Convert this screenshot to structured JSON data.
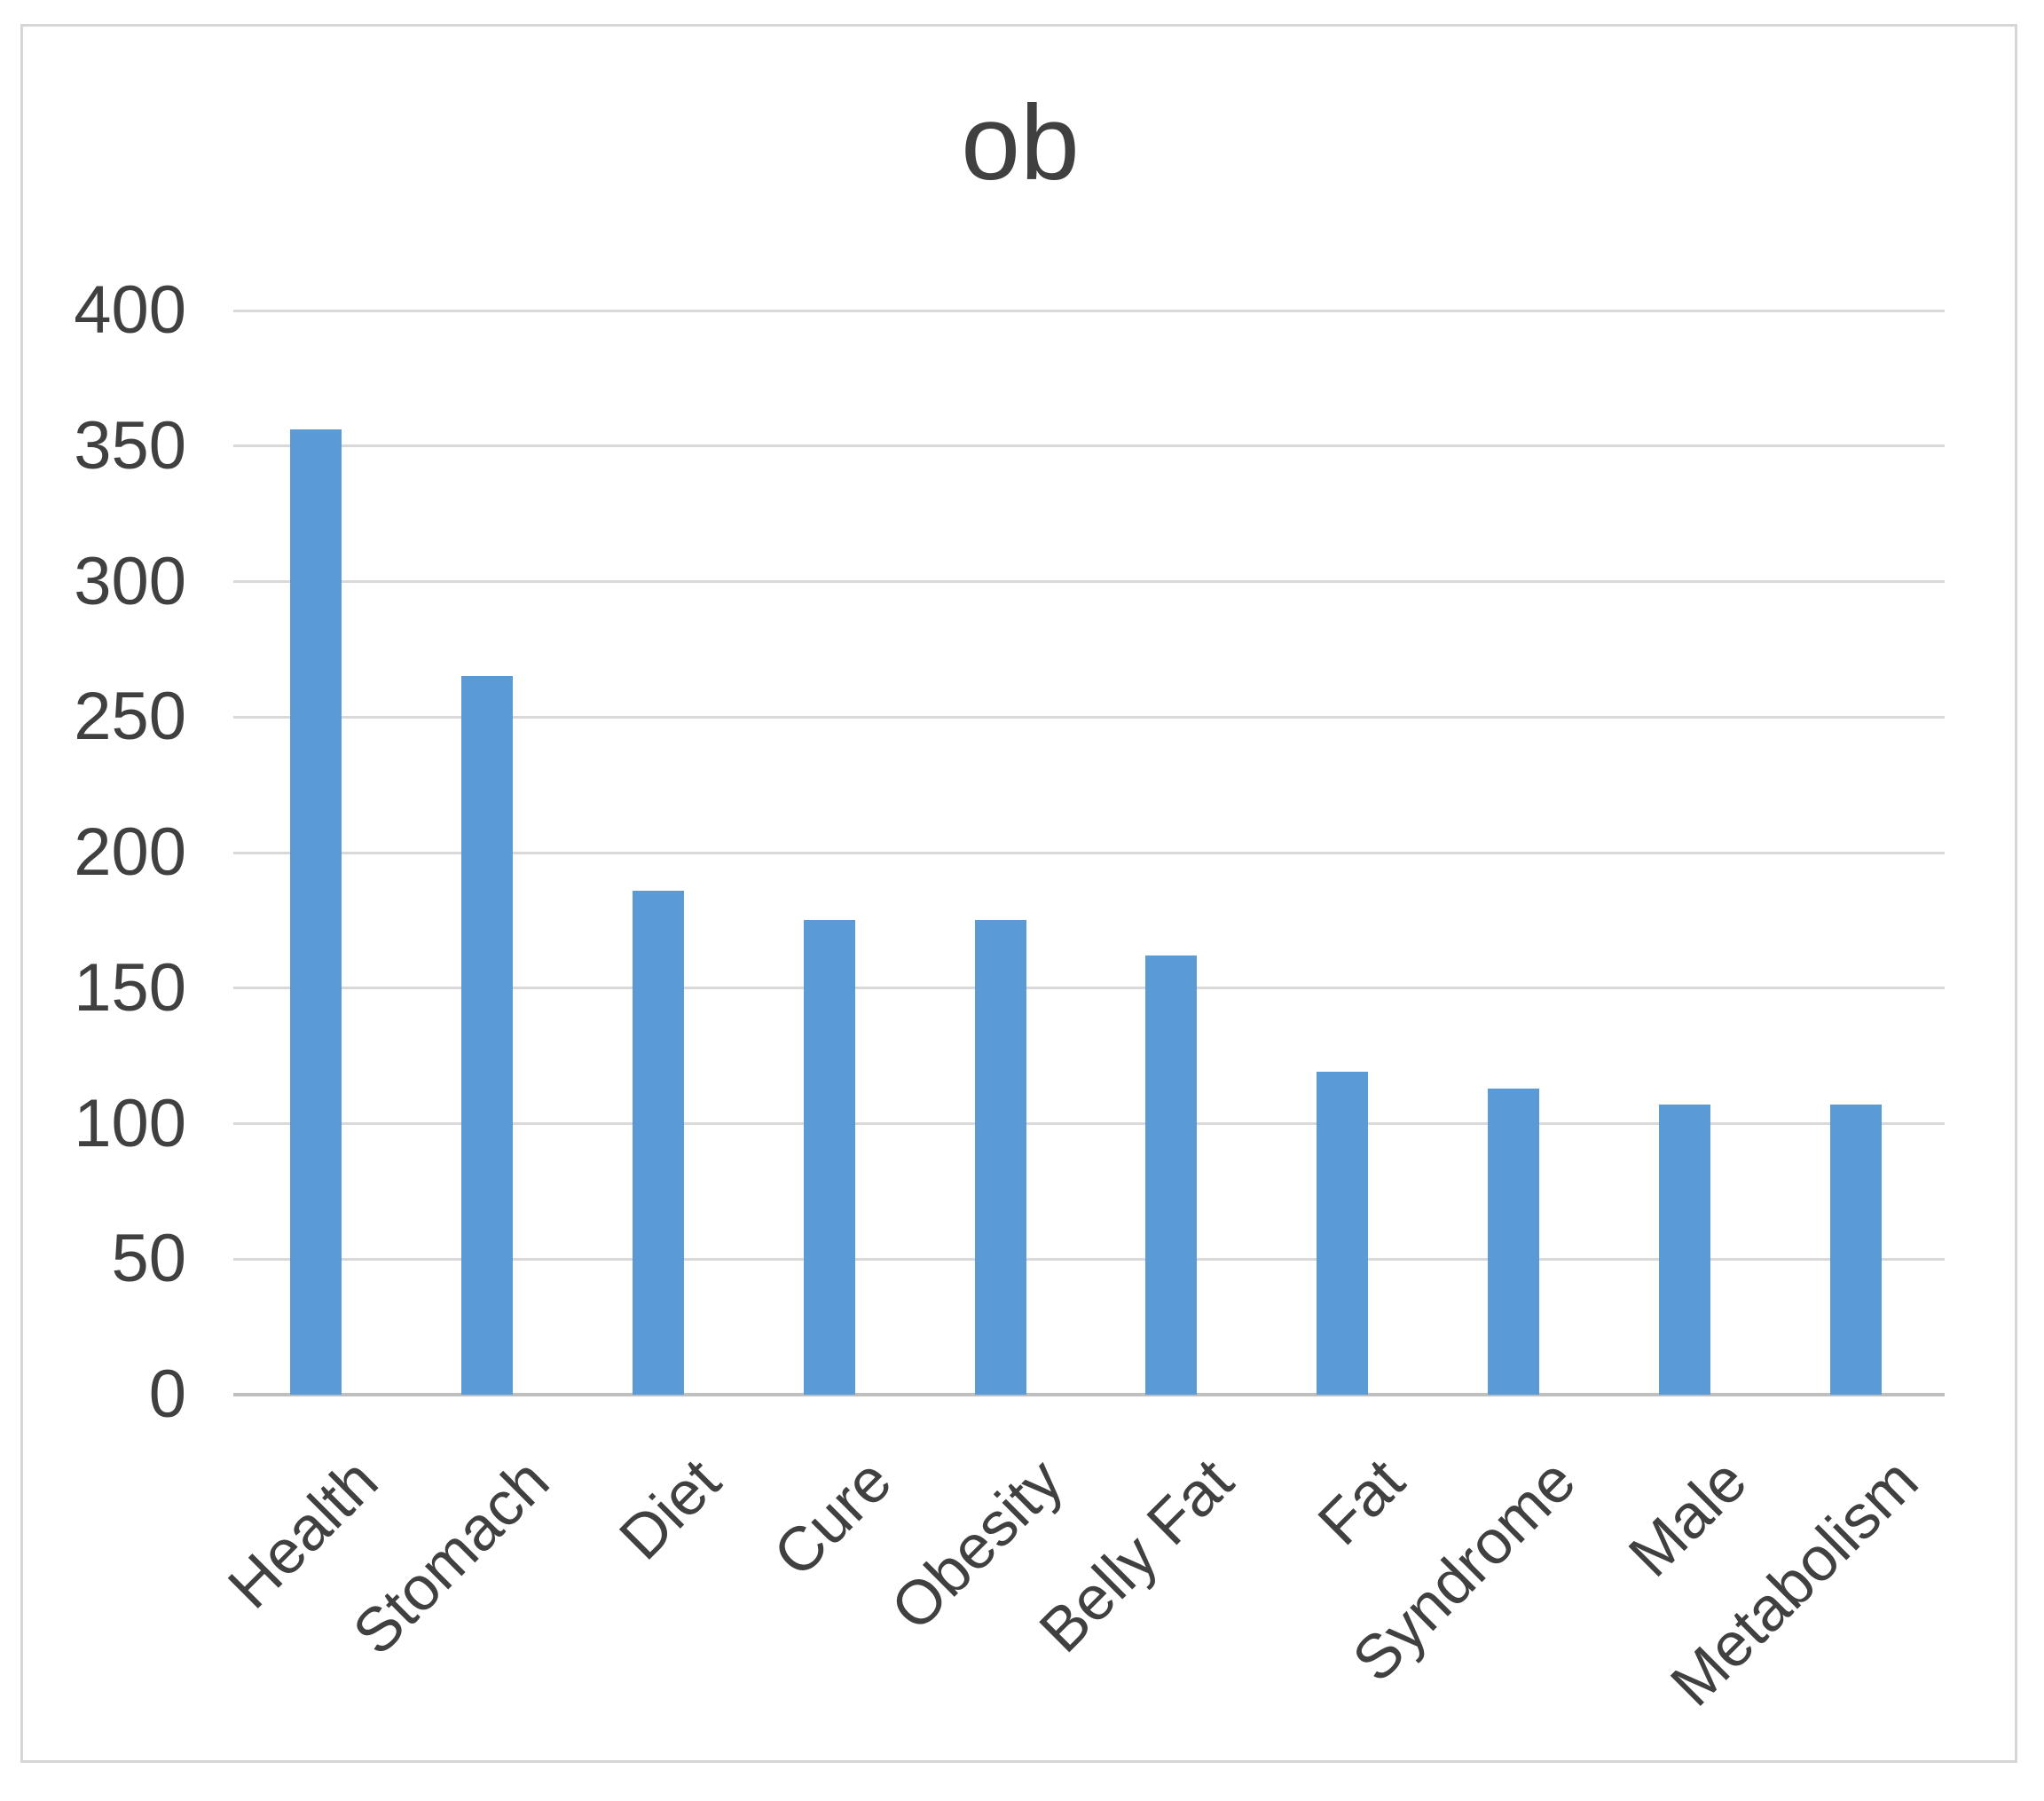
{
  "title": "ob",
  "colors": {
    "bar": "#5B9BD5",
    "gridline": "#D9D9D9",
    "axis_line": "#BFBFBF",
    "text": "#404040",
    "frame_border": "#D6D6D6",
    "background": "#FFFFFF"
  },
  "chart_data": {
    "type": "bar",
    "title": "ob",
    "categories": [
      "Health",
      "Stomach",
      "Diet",
      "Cure",
      "Obesity",
      "Belly Fat",
      "Fat",
      "Syndrome",
      "Male",
      "Metabolism"
    ],
    "values": [
      356,
      265,
      186,
      175,
      175,
      162,
      119,
      113,
      107,
      107
    ],
    "xlabel": "",
    "ylabel": "",
    "ylim": [
      0,
      400
    ],
    "yticks": [
      0,
      50,
      100,
      150,
      200,
      250,
      300,
      350,
      400
    ],
    "grid": true,
    "legend": false,
    "x_tick_rotation_deg": 45,
    "bar_color": "#5B9BD5"
  }
}
